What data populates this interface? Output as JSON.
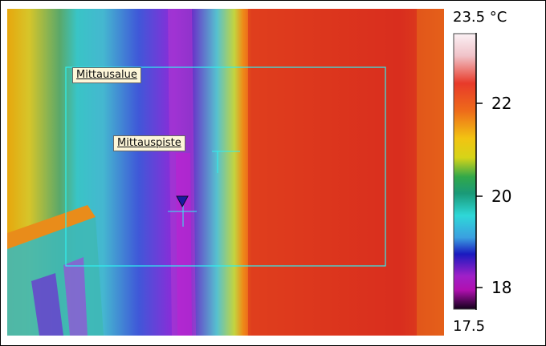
{
  "image": {
    "description_icon": "thermal-image"
  },
  "roi": {
    "area_label": "Mittausalue",
    "spot_label": "Mittauspiste"
  },
  "scale": {
    "max_label": "23.5 °C",
    "min_label": "17.5",
    "ticks": [
      "22",
      "20",
      "18"
    ]
  },
  "colors": {
    "roi_line": "#2ff0f0"
  }
}
